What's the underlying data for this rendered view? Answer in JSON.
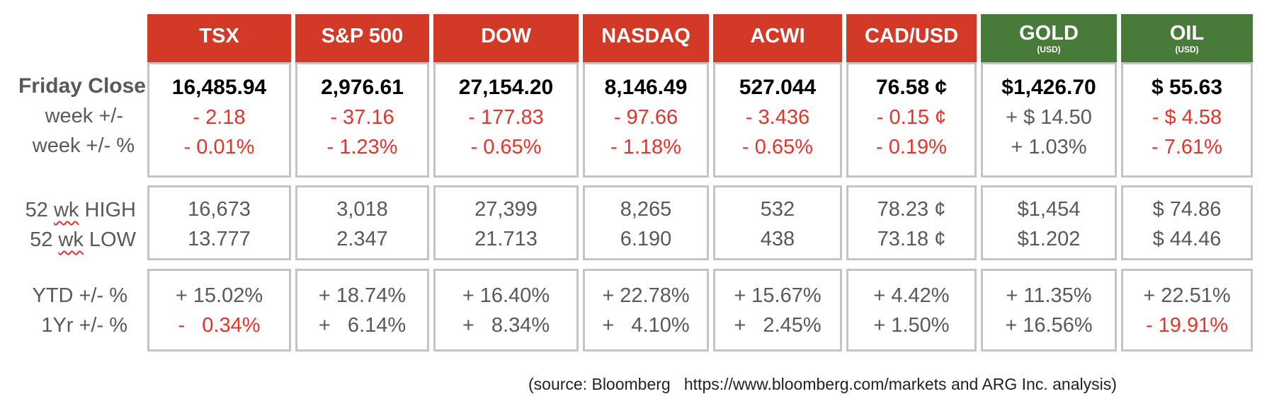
{
  "row_labels": {
    "friday_close": "Friday Close",
    "week_change": "week +/-",
    "week_pct": "week +/- %",
    "high_52_prefix": "52 ",
    "high_52_wk": "wk",
    "high_52_suffix": " HIGH",
    "low_52_prefix": "52 ",
    "low_52_wk": "wk",
    "low_52_suffix": " LOW",
    "ytd": "YTD +/- %",
    "one_yr": "1Yr +/- %"
  },
  "columns": [
    {
      "name": "TSX",
      "sub": "",
      "header_color": "#d23a27",
      "close": "16,485.94",
      "week_change": "- 2.18",
      "week_pct": "- 0.01%",
      "high_52": "16,673",
      "low_52": "13.777",
      "ytd": "+ 15.02%",
      "one_yr": "-   0.34%"
    },
    {
      "name": "S&P 500",
      "sub": "",
      "header_color": "#d23a27",
      "close": "2,976.61",
      "week_change": "- 37.16",
      "week_pct": "- 1.23%",
      "high_52": "3,018",
      "low_52": "2.347",
      "ytd": "+ 18.74%",
      "one_yr": "+   6.14%"
    },
    {
      "name": "DOW",
      "sub": "",
      "header_color": "#d23a27",
      "close": "27,154.20",
      "week_change": "- 177.83",
      "week_pct": "- 0.65%",
      "high_52": "27,399",
      "low_52": "21.713",
      "ytd": "+ 16.40%",
      "one_yr": "+   8.34%"
    },
    {
      "name": "NASDAQ",
      "sub": "",
      "header_color": "#d23a27",
      "close": "8,146.49",
      "week_change": "- 97.66",
      "week_pct": "- 1.18%",
      "high_52": "8,265",
      "low_52": "6.190",
      "ytd": "+ 22.78%",
      "one_yr": "+   4.10%"
    },
    {
      "name": "ACWI",
      "sub": "",
      "header_color": "#d23a27",
      "close": "527.044",
      "week_change": "- 3.436",
      "week_pct": "- 0.65%",
      "high_52": "532",
      "low_52": "438",
      "ytd": "+ 15.67%",
      "one_yr": "+   2.45%"
    },
    {
      "name": "CAD/USD",
      "sub": "",
      "header_color": "#d23a27",
      "close": "76.58 ¢",
      "week_change": "- 0.15 ¢",
      "week_pct": "- 0.19%",
      "high_52": "78.23 ¢",
      "low_52": "73.18 ¢",
      "ytd": "+ 4.42%",
      "one_yr": "+ 1.50%"
    },
    {
      "name": "GOLD",
      "sub": "(USD)",
      "header_color": "#487a3a",
      "close": "$1,426.70",
      "week_change": "+ $ 14.50",
      "week_pct": "+ 1.03%",
      "high_52": "$1,454",
      "low_52": "$1.202",
      "ytd": "+ 11.35%",
      "one_yr": "+ 16.56%"
    },
    {
      "name": "OIL",
      "sub": "(USD)",
      "header_color": "#487a3a",
      "close": "$ 55.63",
      "week_change": "- $ 4.58",
      "week_pct": "- 7.61%",
      "high_52": "$ 74.86",
      "low_52": "$ 44.46",
      "ytd": "+ 22.51%",
      "one_yr": "- 19.91%"
    }
  ],
  "source_note": "(source: Bloomberg   https://www.bloomberg.com/markets and ARG Inc. analysis)"
}
